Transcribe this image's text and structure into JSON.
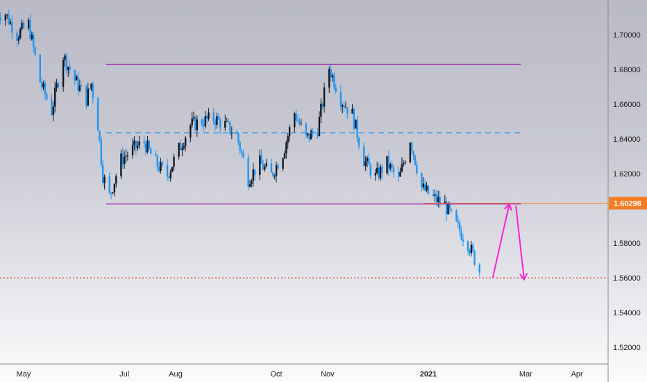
{
  "chart_data": {
    "type": "candlestick",
    "instrument": "",
    "timeframe": "daily",
    "x_ticks": [
      {
        "label": "May",
        "date": "2020-05-01"
      },
      {
        "label": "Jul",
        "date": "2020-07-01"
      },
      {
        "label": "Aug",
        "date": "2020-08-01"
      },
      {
        "label": "Oct",
        "date": "2020-10-01"
      },
      {
        "label": "Nov",
        "date": "2020-11-01"
      },
      {
        "label": "2021",
        "date": "2021-01-01",
        "bold": true
      },
      {
        "label": "Mar",
        "date": "2021-03-01"
      },
      {
        "label": "Apr",
        "date": "2021-04-01"
      }
    ],
    "y_ticks": [
      "1.70000",
      "1.68000",
      "1.66000",
      "1.64000",
      "1.62000",
      "1.58000",
      "1.56000",
      "1.54000",
      "1.52000"
    ],
    "ylim": [
      1.513,
      1.722
    ],
    "y_scale": "linear",
    "grid": false,
    "current_price": {
      "label": "1.60298",
      "value": 1.60298,
      "color": "#f57c20"
    },
    "candle_colors": {
      "up": "#131722",
      "down": "#2196f3"
    },
    "price_series": [
      {
        "date": "2020-04-20",
        "close": 1.712
      },
      {
        "date": "2020-04-27",
        "close": 1.7
      },
      {
        "date": "2020-05-04",
        "close": 1.706
      },
      {
        "date": "2020-05-11",
        "close": 1.673
      },
      {
        "date": "2020-05-18",
        "close": 1.656
      },
      {
        "date": "2020-05-25",
        "close": 1.688
      },
      {
        "date": "2020-06-01",
        "close": 1.674
      },
      {
        "date": "2020-06-08",
        "close": 1.663
      },
      {
        "date": "2020-06-11",
        "close": 1.672
      },
      {
        "date": "2020-06-15",
        "close": 1.648
      },
      {
        "date": "2020-06-18",
        "close": 1.619
      },
      {
        "date": "2020-06-22",
        "close": 1.607
      },
      {
        "date": "2020-06-29",
        "close": 1.628
      },
      {
        "date": "2020-07-06",
        "close": 1.634
      },
      {
        "date": "2020-07-13",
        "close": 1.638
      },
      {
        "date": "2020-07-20",
        "close": 1.626
      },
      {
        "date": "2020-07-27",
        "close": 1.619
      },
      {
        "date": "2020-08-03",
        "close": 1.634
      },
      {
        "date": "2020-08-10",
        "close": 1.648
      },
      {
        "date": "2020-08-17",
        "close": 1.65
      },
      {
        "date": "2020-08-24",
        "close": 1.652
      },
      {
        "date": "2020-08-31",
        "close": 1.648
      },
      {
        "date": "2020-09-07",
        "close": 1.642
      },
      {
        "date": "2020-09-14",
        "close": 1.617
      },
      {
        "date": "2020-09-21",
        "close": 1.626
      },
      {
        "date": "2020-09-28",
        "close": 1.619
      },
      {
        "date": "2020-10-05",
        "close": 1.632
      },
      {
        "date": "2020-10-12",
        "close": 1.655
      },
      {
        "date": "2020-10-19",
        "close": 1.64
      },
      {
        "date": "2020-10-26",
        "close": 1.646
      },
      {
        "date": "2020-11-02",
        "close": 1.681
      },
      {
        "date": "2020-11-09",
        "close": 1.663
      },
      {
        "date": "2020-11-16",
        "close": 1.654
      },
      {
        "date": "2020-11-23",
        "close": 1.628
      },
      {
        "date": "2020-11-30",
        "close": 1.618
      },
      {
        "date": "2020-12-07",
        "close": 1.626
      },
      {
        "date": "2020-12-14",
        "close": 1.616
      },
      {
        "date": "2020-12-21",
        "close": 1.64
      },
      {
        "date": "2020-12-28",
        "close": 1.612
      },
      {
        "date": "2021-01-04",
        "close": 1.606
      },
      {
        "date": "2021-01-11",
        "close": 1.602
      },
      {
        "date": "2021-01-18",
        "close": 1.59
      },
      {
        "date": "2021-01-25",
        "close": 1.58
      },
      {
        "date": "2021-02-01",
        "close": 1.564
      }
    ],
    "annotations": [
      {
        "kind": "horizontal_line",
        "role": "range_top",
        "value": 1.683,
        "from": "2020-06-20",
        "to": "2021-02-26",
        "color": "#9c27b0"
      },
      {
        "kind": "horizontal_line",
        "role": "range_bottom",
        "value": 1.6025,
        "from": "2020-06-20",
        "to": "2021-02-26",
        "color": "#9c27b0"
      },
      {
        "kind": "horizontal_line",
        "role": "range_mid",
        "style": "dashed",
        "value": 1.6435,
        "from": "2020-06-20",
        "to": "2021-02-26",
        "color": "#2196f3"
      },
      {
        "kind": "horizontal_line",
        "role": "level",
        "style": "dotted",
        "value": 1.56,
        "color": "#e53935"
      },
      {
        "kind": "arrow",
        "role": "projected_retest",
        "from": {
          "date": "2021-02-09",
          "value": 1.56
        },
        "to": {
          "date": "2021-02-19",
          "value": 1.6025
        },
        "color": "#ff1fd2"
      },
      {
        "kind": "arrow",
        "role": "projected_drop",
        "from": {
          "date": "2021-02-23",
          "value": 1.6015
        },
        "to": {
          "date": "2021-02-28",
          "value": 1.559
        },
        "color": "#ff1fd2"
      }
    ]
  }
}
